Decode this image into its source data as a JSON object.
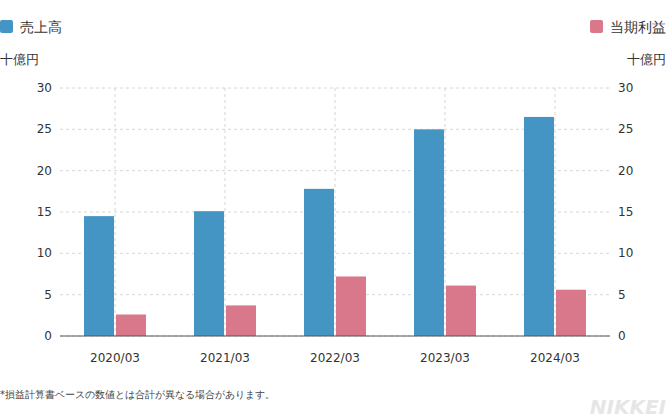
{
  "chart_data": {
    "type": "bar",
    "categories": [
      "2020/03",
      "2021/03",
      "2022/03",
      "2023/03",
      "2024/03"
    ],
    "series": [
      {
        "name": "売上高",
        "color": "#4494c4",
        "values": [
          14.5,
          15.1,
          17.8,
          25.0,
          26.5
        ]
      },
      {
        "name": "当期利益",
        "color": "#d9778b",
        "values": [
          2.6,
          3.7,
          7.2,
          6.1,
          5.6
        ],
        "axis": "y2"
      }
    ],
    "y_label": "十億円",
    "y2_label": "十億円",
    "ylim": [
      0,
      30
    ],
    "yticks": [
      0,
      5,
      10,
      15,
      20,
      25,
      30
    ],
    "y2lim": [
      0,
      30
    ],
    "y2ticks": [
      0,
      5,
      10,
      15,
      20,
      25,
      30
    ],
    "grid": true,
    "annotations": [
      "*損益計算書ベースの数値とは合計が異なる場合があります。"
    ],
    "credit": "NIKKEI"
  }
}
